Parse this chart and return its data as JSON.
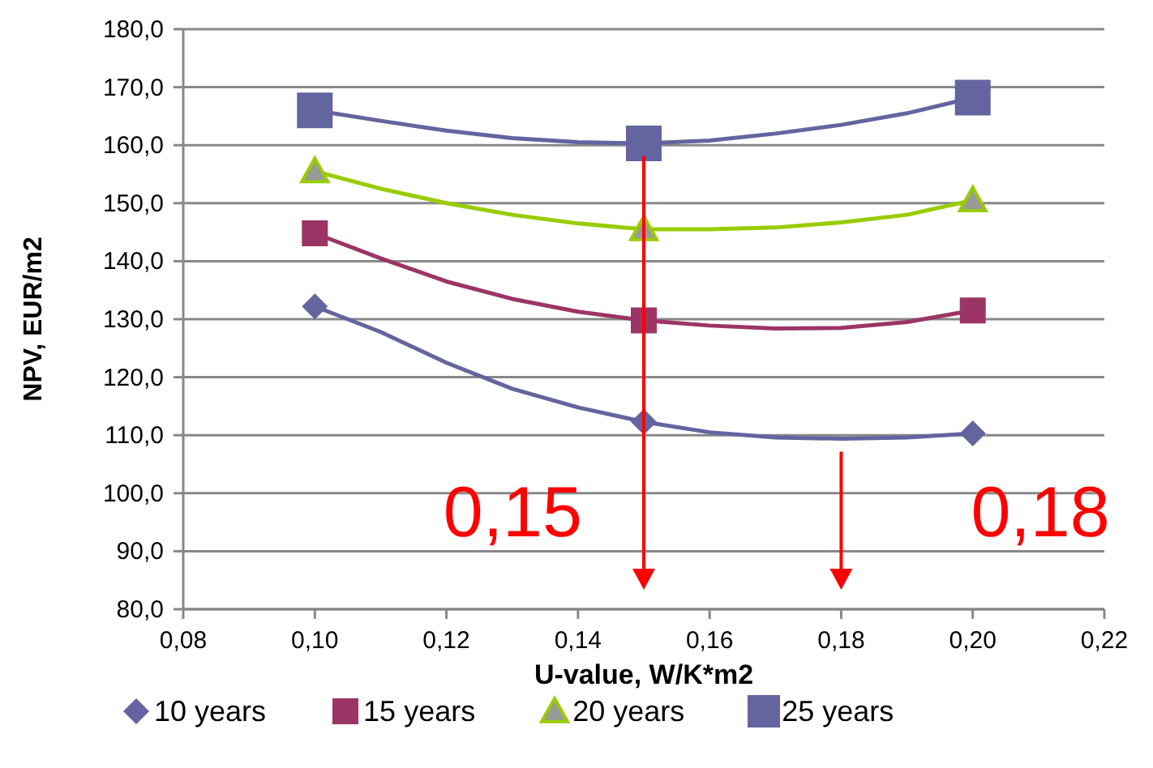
{
  "chart_data": {
    "type": "line",
    "xlabel": "U-value, W/K*m2",
    "ylabel": "NPV, EUR/m2",
    "xlim": [
      0.08,
      0.22
    ],
    "xticks": [
      {
        "value": 0.08,
        "label": "0,08"
      },
      {
        "value": 0.1,
        "label": "0,10"
      },
      {
        "value": 0.12,
        "label": "0,12"
      },
      {
        "value": 0.14,
        "label": "0,14"
      },
      {
        "value": 0.16,
        "label": "0,16"
      },
      {
        "value": 0.18,
        "label": "0,18"
      },
      {
        "value": 0.2,
        "label": "0,20"
      },
      {
        "value": 0.22,
        "label": "0,22"
      }
    ],
    "ylim": [
      80,
      180
    ],
    "yticks": [
      {
        "value": 80,
        "label": "80,0"
      },
      {
        "value": 90,
        "label": "90,0"
      },
      {
        "value": 100,
        "label": "100,0"
      },
      {
        "value": 110,
        "label": "110,0"
      },
      {
        "value": 120,
        "label": "120,0"
      },
      {
        "value": 130,
        "label": "130,0"
      },
      {
        "value": 140,
        "label": "140,0"
      },
      {
        "value": 150,
        "label": "150,0"
      },
      {
        "value": 160,
        "label": "160,0"
      },
      {
        "value": 170,
        "label": "170,0"
      },
      {
        "value": 180,
        "label": "180,0"
      }
    ],
    "grid": "y",
    "legend": "bottom",
    "series": [
      {
        "color": "#6464a0",
        "marker": "none",
        "x": [
          0.1,
          0.11,
          0.12,
          0.13,
          0.14,
          0.15,
          0.16,
          0.17,
          0.18,
          0.19,
          0.2
        ],
        "values": [
          132.2,
          127.8,
          122.5,
          118,
          114.8,
          112.3,
          110.5,
          109.6,
          109.4,
          109.6,
          110.3
        ]
      },
      {
        "color": "#9c3466",
        "marker": "none",
        "x": [
          0.1,
          0.11,
          0.12,
          0.13,
          0.14,
          0.15,
          0.16,
          0.17,
          0.18,
          0.19,
          0.2
        ],
        "values": [
          144.8,
          140.5,
          136.5,
          133.5,
          131.3,
          129.8,
          128.9,
          128.4,
          128.5,
          129.5,
          131.5
        ]
      },
      {
        "color": "#99cc00",
        "marker": "none",
        "x": [
          0.1,
          0.11,
          0.12,
          0.13,
          0.14,
          0.15,
          0.16,
          0.17,
          0.18,
          0.19,
          0.2
        ],
        "values": [
          155.5,
          152.5,
          150,
          148,
          146.5,
          145.5,
          145.5,
          145.8,
          146.7,
          148,
          150.5
        ]
      },
      {
        "color": "#6464a0",
        "marker": "none",
        "x": [
          0.1,
          0.11,
          0.12,
          0.13,
          0.14,
          0.15,
          0.16,
          0.17,
          0.18,
          0.19,
          0.2
        ],
        "values": [
          166,
          164.2,
          162.5,
          161.2,
          160.5,
          160.3,
          160.8,
          162,
          163.5,
          165.5,
          168.2
        ]
      },
      {
        "type": "scatter",
        "name": "10 years",
        "color": "#6464a0",
        "marker": "diamond",
        "x": [
          0.1,
          0.15,
          0.2
        ],
        "values": [
          132.2,
          112.3,
          110.3
        ]
      },
      {
        "type": "scatter",
        "name": "15 years",
        "color": "#9c3466",
        "marker": "square",
        "x": [
          0.1,
          0.15,
          0.2
        ],
        "values": [
          144.8,
          129.8,
          131.5
        ]
      },
      {
        "type": "scatter",
        "name": "20 years",
        "color": "#99cc00",
        "marker": "triangle",
        "x": [
          0.1,
          0.15,
          0.2
        ],
        "values": [
          155.5,
          145.5,
          150.5
        ]
      },
      {
        "type": "scatter",
        "name": "25 years",
        "color": "#6464a0",
        "marker": "square",
        "x": [
          0.1,
          0.15,
          0.2
        ],
        "values": [
          166,
          160.3,
          168.2
        ]
      }
    ],
    "annotations": [
      {
        "text": "0,15",
        "x": 0.15,
        "y": 160.3
      },
      {
        "text": "0,18",
        "x": 0.18,
        "y": 109.4
      }
    ]
  }
}
